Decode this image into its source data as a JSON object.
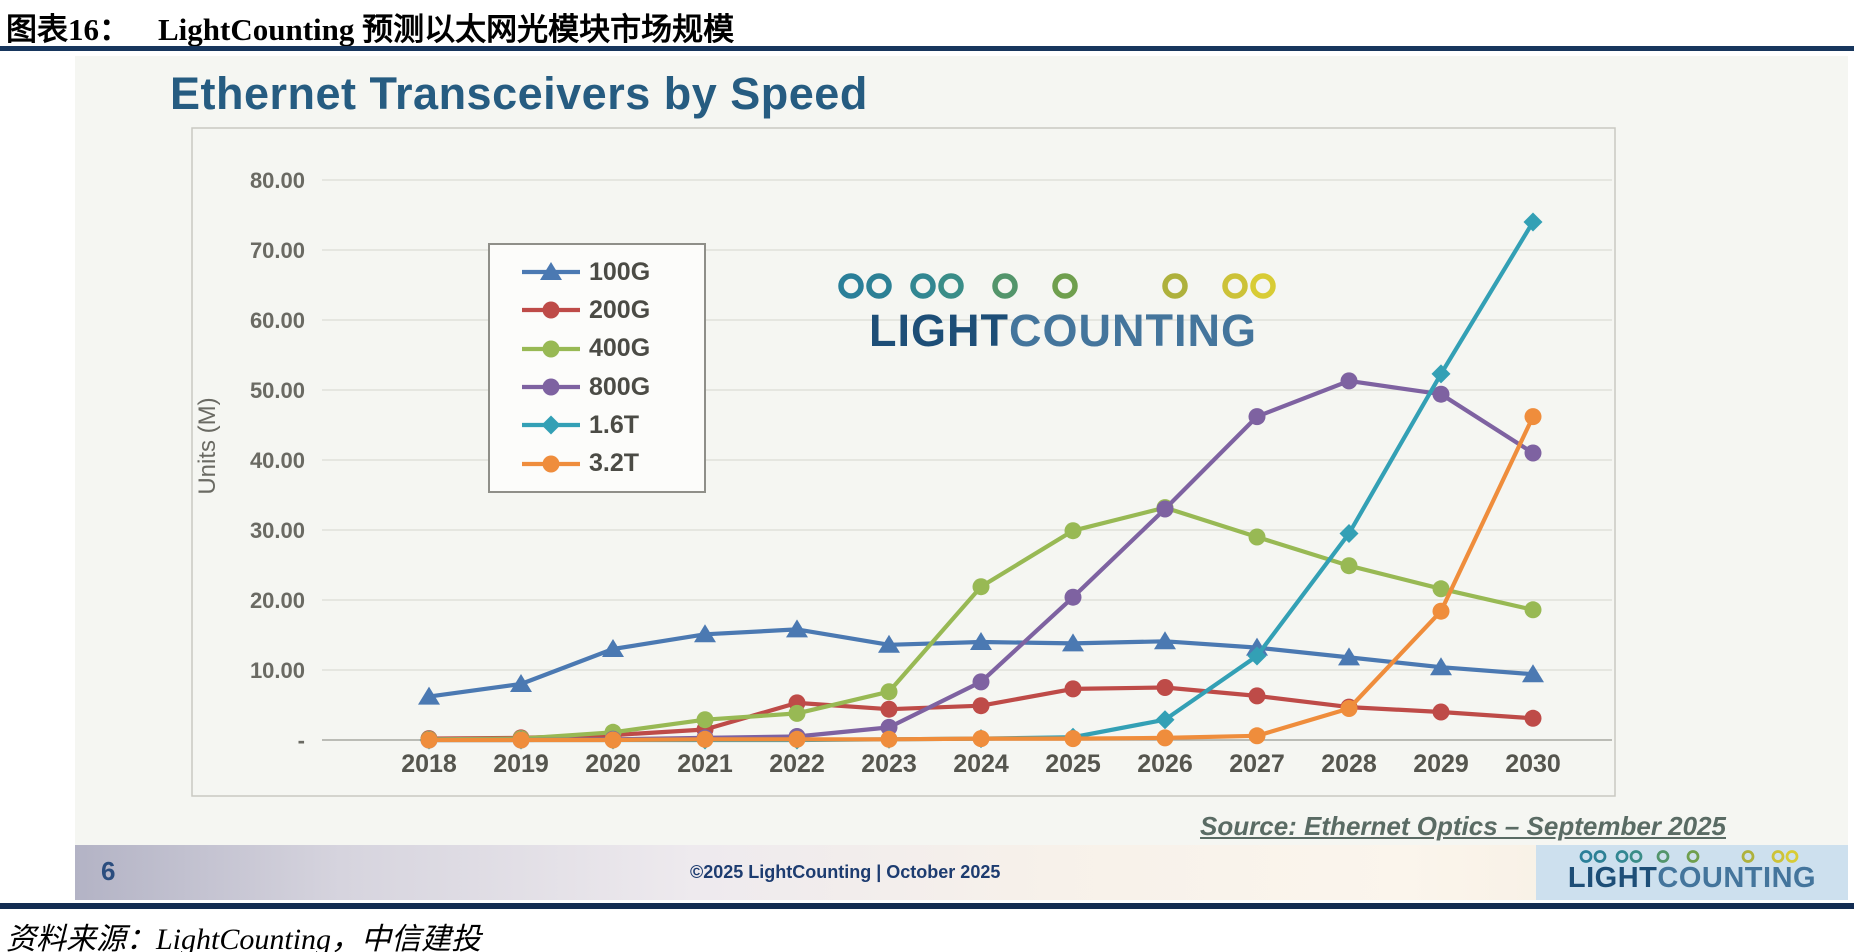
{
  "doc": {
    "header_label": "图表16：",
    "header_title": "LightCounting 预测以太网光模块市场规模",
    "footnote": "资料来源：LightCounting，中信建投"
  },
  "slide": {
    "page_number": "6",
    "copyright": "©2025 LightCounting | October 2025",
    "source_note": "Source: Ethernet Optics – September 2025",
    "logo": {
      "light": "LIGHT",
      "counting": "COUNTING"
    },
    "logo_colors": {
      "light_text": "#1d4e77",
      "counting_text": "#44759c"
    }
  },
  "chart_data": {
    "type": "line",
    "title": "Ethernet Transceivers by Speed",
    "xlabel": "",
    "ylabel": "Units (M)",
    "ylim": [
      0,
      80
    ],
    "grid": true,
    "legend_position": "upper-left-box",
    "categories": [
      "2018",
      "2019",
      "2020",
      "2021",
      "2022",
      "2023",
      "2024",
      "2025",
      "2026",
      "2027",
      "2028",
      "2029",
      "2030"
    ],
    "yticks": [
      {
        "value": 80,
        "label": "80.00"
      },
      {
        "value": 70,
        "label": "70.00"
      },
      {
        "value": 60,
        "label": "60.00"
      },
      {
        "value": 50,
        "label": "50.00"
      },
      {
        "value": 40,
        "label": "40.00"
      },
      {
        "value": 30,
        "label": "30.00"
      },
      {
        "value": 20,
        "label": "20.00"
      },
      {
        "value": 10,
        "label": "10.00"
      },
      {
        "value": 0,
        "label": "-"
      }
    ],
    "series": [
      {
        "name": "100G",
        "color": "#4B79B2",
        "marker": "triangle",
        "values": [
          6.2,
          8.0,
          13.0,
          15.1,
          15.8,
          13.6,
          14.0,
          13.8,
          14.1,
          13.2,
          11.8,
          10.4,
          9.4
        ]
      },
      {
        "name": "200G",
        "color": "#BE4B48",
        "marker": "circle",
        "values": [
          0.2,
          0.3,
          0.7,
          1.5,
          5.3,
          4.4,
          4.9,
          7.3,
          7.5,
          6.3,
          4.7,
          4.0,
          3.1
        ]
      },
      {
        "name": "400G",
        "color": "#98B954",
        "marker": "circle",
        "values": [
          0.1,
          0.2,
          1.1,
          2.9,
          3.8,
          6.9,
          21.9,
          29.9,
          33.2,
          29.0,
          24.9,
          21.6,
          18.6
        ]
      },
      {
        "name": "800G",
        "color": "#7E62A1",
        "marker": "circle",
        "values": [
          0.0,
          0.0,
          0.1,
          0.3,
          0.5,
          1.8,
          8.3,
          20.4,
          33.0,
          46.2,
          51.3,
          49.4,
          41.0
        ]
      },
      {
        "name": "1.6T",
        "color": "#33A0B5",
        "marker": "diamond",
        "values": [
          0.0,
          0.0,
          0.0,
          0.0,
          0.0,
          0.1,
          0.2,
          0.4,
          2.9,
          12.0,
          29.5,
          52.3,
          74.0
        ]
      },
      {
        "name": "3.2T",
        "color": "#EF8D3C",
        "marker": "circle",
        "values": [
          0.0,
          0.0,
          0.0,
          0.1,
          0.1,
          0.1,
          0.2,
          0.2,
          0.3,
          0.6,
          4.5,
          18.4,
          46.2
        ]
      }
    ],
    "source": "Source: Ethernet Optics – September 2025"
  }
}
